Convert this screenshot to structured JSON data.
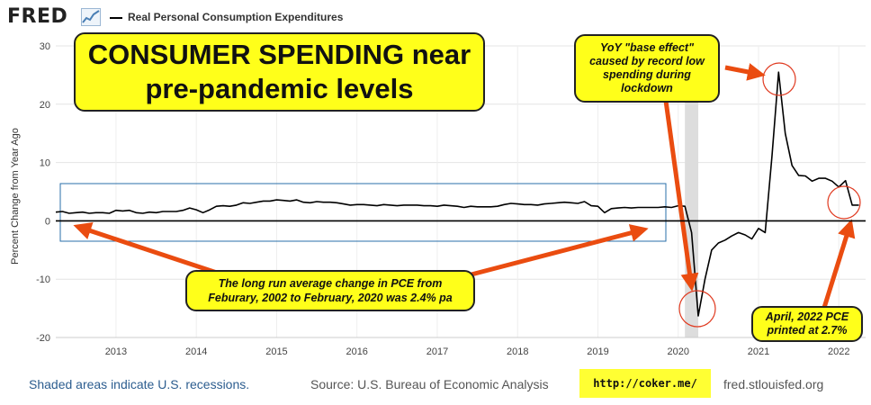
{
  "header": {
    "logo": "FRED",
    "legend_label": "Real Personal Consumption Expenditures"
  },
  "annotations": {
    "headline": "CONSUMER SPENDING near pre-pandemic levels",
    "base_effect": "YoY \"base effect\" caused by record low spending during lockdown",
    "long_run": "The long run average change in PCE from Feburary, 2002 to February, 2020 was 2.4% pa",
    "april": "April, 2022 PCE printed at 2.7%"
  },
  "footer": {
    "recession_note": "Shaded areas indicate U.S. recessions.",
    "source": "Source: U.S. Bureau of Economic Analysis",
    "coker": "http://coker.me/",
    "fred_url": "fred.stlouisfed.org"
  },
  "colors": {
    "line": "#000000",
    "callout_fill": "#ffff1a",
    "arrow": "#ea4c10",
    "box": "#2a6fa8",
    "recession": "#dddddd"
  },
  "chart_data": {
    "type": "line",
    "title": "",
    "xlabel": "",
    "ylabel": "Percent Change from Year Ago",
    "ylim": [
      -20,
      30
    ],
    "yticks": [
      -20,
      -10,
      0,
      10,
      20,
      30
    ],
    "xlim": [
      "2012-04",
      "2022-05"
    ],
    "xticks": [
      "2013",
      "2014",
      "2015",
      "2016",
      "2017",
      "2018",
      "2019",
      "2020",
      "2021",
      "2022"
    ],
    "grid": true,
    "legend_position": "top-left",
    "recession": [
      "2020-02",
      "2020-04"
    ],
    "series": [
      {
        "name": "Real Personal Consumption Expenditures",
        "x": [
          "2012-04",
          "2012-05",
          "2012-06",
          "2012-07",
          "2012-08",
          "2012-09",
          "2012-10",
          "2012-11",
          "2012-12",
          "2013-01",
          "2013-02",
          "2013-03",
          "2013-04",
          "2013-05",
          "2013-06",
          "2013-07",
          "2013-08",
          "2013-09",
          "2013-10",
          "2013-11",
          "2013-12",
          "2014-01",
          "2014-02",
          "2014-03",
          "2014-04",
          "2014-05",
          "2014-06",
          "2014-07",
          "2014-08",
          "2014-09",
          "2014-10",
          "2014-11",
          "2014-12",
          "2015-01",
          "2015-02",
          "2015-03",
          "2015-04",
          "2015-05",
          "2015-06",
          "2015-07",
          "2015-08",
          "2015-09",
          "2015-10",
          "2015-11",
          "2015-12",
          "2016-01",
          "2016-02",
          "2016-03",
          "2016-04",
          "2016-05",
          "2016-06",
          "2016-07",
          "2016-08",
          "2016-09",
          "2016-10",
          "2016-11",
          "2016-12",
          "2017-01",
          "2017-02",
          "2017-03",
          "2017-04",
          "2017-05",
          "2017-06",
          "2017-07",
          "2017-08",
          "2017-09",
          "2017-10",
          "2017-11",
          "2017-12",
          "2018-01",
          "2018-02",
          "2018-03",
          "2018-04",
          "2018-05",
          "2018-06",
          "2018-07",
          "2018-08",
          "2018-09",
          "2018-10",
          "2018-11",
          "2018-12",
          "2019-01",
          "2019-02",
          "2019-03",
          "2019-04",
          "2019-05",
          "2019-06",
          "2019-07",
          "2019-08",
          "2019-09",
          "2019-10",
          "2019-11",
          "2019-12",
          "2020-01",
          "2020-02",
          "2020-03",
          "2020-04",
          "2020-05",
          "2020-06",
          "2020-07",
          "2020-08",
          "2020-09",
          "2020-10",
          "2020-11",
          "2020-12",
          "2021-01",
          "2021-02",
          "2021-03",
          "2021-04",
          "2021-05",
          "2021-06",
          "2021-07",
          "2021-08",
          "2021-09",
          "2021-10",
          "2021-11",
          "2021-12",
          "2022-01",
          "2022-02",
          "2022-03",
          "2022-04"
        ],
        "values": [
          1.5,
          1.6,
          1.3,
          1.4,
          1.5,
          1.3,
          1.4,
          1.4,
          1.3,
          1.8,
          1.7,
          1.8,
          1.4,
          1.3,
          1.5,
          1.4,
          1.6,
          1.6,
          1.6,
          1.8,
          2.2,
          1.9,
          1.4,
          1.9,
          2.5,
          2.6,
          2.5,
          2.7,
          3.1,
          3.0,
          3.2,
          3.4,
          3.4,
          3.6,
          3.5,
          3.4,
          3.6,
          3.2,
          3.1,
          3.3,
          3.2,
          3.2,
          3.1,
          2.9,
          2.7,
          2.8,
          2.8,
          2.7,
          2.6,
          2.8,
          2.7,
          2.6,
          2.7,
          2.7,
          2.7,
          2.6,
          2.6,
          2.5,
          2.7,
          2.6,
          2.5,
          2.3,
          2.5,
          2.4,
          2.4,
          2.4,
          2.5,
          2.8,
          3.0,
          2.9,
          2.8,
          2.8,
          2.7,
          2.9,
          3.0,
          3.1,
          3.2,
          3.1,
          3.0,
          3.3,
          2.6,
          2.5,
          1.4,
          2.1,
          2.2,
          2.3,
          2.2,
          2.3,
          2.3,
          2.3,
          2.3,
          2.4,
          2.3,
          2.6,
          2.5,
          -2.0,
          -16.3,
          -10.0,
          -5.0,
          -3.8,
          -3.3,
          -2.6,
          -2.0,
          -2.4,
          -3.1,
          -1.3,
          -2.0,
          11.0,
          25.5,
          15.0,
          9.5,
          7.8,
          7.7,
          6.8,
          7.3,
          7.3,
          6.8,
          5.8,
          6.9,
          2.7,
          2.7
        ]
      }
    ]
  }
}
